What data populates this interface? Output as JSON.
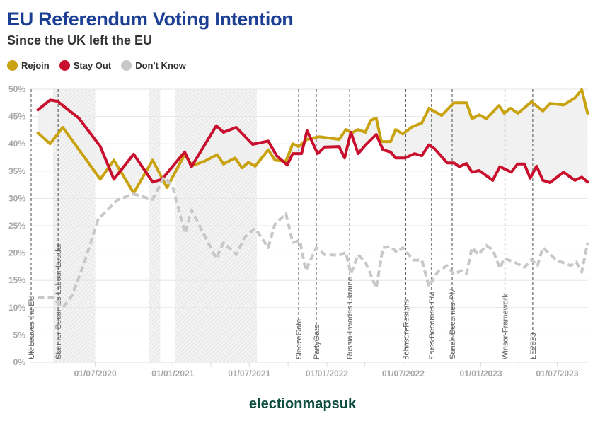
{
  "chart_data": {
    "type": "line",
    "title": "EU Referendum Voting Intention",
    "subtitle": "Since the UK left the EU",
    "xlabel": "",
    "ylabel": "",
    "xlim": [
      "2020-01-31",
      "2023-09-12"
    ],
    "ylim": [
      0,
      50
    ],
    "y_ticks": [
      "0%",
      "5%",
      "10%",
      "15%",
      "20%",
      "25%",
      "30%",
      "35%",
      "40%",
      "45%",
      "50%"
    ],
    "x_ticks": [
      {
        "date": "2020-07-01",
        "label": "01/07/2020"
      },
      {
        "date": "2021-01-01",
        "label": "01/01/2021"
      },
      {
        "date": "2021-07-01",
        "label": "01/07/2021"
      },
      {
        "date": "2022-01-01",
        "label": "01/01/2022"
      },
      {
        "date": "2022-07-01",
        "label": "01/07/2022"
      },
      {
        "date": "2023-01-01",
        "label": "01/01/2023"
      },
      {
        "date": "2023-07-01",
        "label": "01/07/2023"
      }
    ],
    "grid": true,
    "legend_position": "top-left",
    "series": [
      {
        "name": "Rejoin",
        "color": "#c9a20f",
        "style": "solid",
        "points": [
          [
            "2020-02-16",
            42
          ],
          [
            "2020-03-16",
            40
          ],
          [
            "2020-04-15",
            43
          ],
          [
            "2020-07-13",
            33.5
          ],
          [
            "2020-08-14",
            37
          ],
          [
            "2020-09-30",
            31
          ],
          [
            "2020-11-14",
            37
          ],
          [
            "2020-12-18",
            32
          ],
          [
            "2021-01-29",
            38
          ],
          [
            "2021-02-16",
            36
          ],
          [
            "2021-03-17",
            36.8
          ],
          [
            "2021-04-16",
            38
          ],
          [
            "2021-05-01",
            36.3
          ],
          [
            "2021-05-28",
            37.4
          ],
          [
            "2021-06-14",
            35.6
          ],
          [
            "2021-06-29",
            36.6
          ],
          [
            "2021-07-15",
            35.9
          ],
          [
            "2021-08-15",
            38.9
          ],
          [
            "2021-08-31",
            37
          ],
          [
            "2021-09-26",
            36.8
          ],
          [
            "2021-10-12",
            40
          ],
          [
            "2021-10-26",
            39.5
          ],
          [
            "2021-11-15",
            40.8
          ],
          [
            "2021-12-14",
            41.3
          ],
          [
            "2022-01-30",
            40.8
          ],
          [
            "2022-02-15",
            42.6
          ],
          [
            "2022-03-01",
            42
          ],
          [
            "2022-03-16",
            42.6
          ],
          [
            "2022-04-02",
            42.1
          ],
          [
            "2022-04-15",
            44.3
          ],
          [
            "2022-04-28",
            44.7
          ],
          [
            "2022-05-10",
            40.4
          ],
          [
            "2022-06-01",
            40.4
          ],
          [
            "2022-06-13",
            42.6
          ],
          [
            "2022-06-30",
            41.8
          ],
          [
            "2022-07-22",
            43.1
          ],
          [
            "2022-08-14",
            43.8
          ],
          [
            "2022-08-31",
            46.5
          ],
          [
            "2022-09-30",
            45.2
          ],
          [
            "2022-10-29",
            47.5
          ],
          [
            "2022-11-28",
            47.5
          ],
          [
            "2022-12-11",
            44.6
          ],
          [
            "2022-12-28",
            45.3
          ],
          [
            "2023-01-14",
            44.6
          ],
          [
            "2023-02-13",
            47
          ],
          [
            "2023-02-25",
            45.6
          ],
          [
            "2023-03-12",
            46.5
          ],
          [
            "2023-03-30",
            45.6
          ],
          [
            "2023-05-01",
            47.7
          ],
          [
            "2023-05-28",
            46
          ],
          [
            "2023-06-14",
            47.4
          ],
          [
            "2023-07-16",
            47.1
          ],
          [
            "2023-08-12",
            48.4
          ],
          [
            "2023-08-28",
            49.9
          ],
          [
            "2023-09-11",
            45.6
          ]
        ]
      },
      {
        "name": "Stay Out",
        "color": "#c8102e",
        "style": "solid",
        "points": [
          [
            "2020-02-16",
            46.2
          ],
          [
            "2020-03-16",
            48
          ],
          [
            "2020-04-02",
            47.8
          ],
          [
            "2020-05-23",
            44.7
          ],
          [
            "2020-07-13",
            39.5
          ],
          [
            "2020-08-14",
            33.5
          ],
          [
            "2020-09-30",
            38.1
          ],
          [
            "2020-11-14",
            33
          ],
          [
            "2020-12-06",
            33.5
          ],
          [
            "2021-01-29",
            38.5
          ],
          [
            "2021-02-14",
            35.8
          ],
          [
            "2021-04-14",
            43.3
          ],
          [
            "2021-05-01",
            42.1
          ],
          [
            "2021-05-31",
            43
          ],
          [
            "2021-07-09",
            39.9
          ],
          [
            "2021-08-15",
            40.5
          ],
          [
            "2021-09-04",
            37.8
          ],
          [
            "2021-09-29",
            36.1
          ],
          [
            "2021-10-12",
            38.2
          ],
          [
            "2021-11-02",
            38.2
          ],
          [
            "2021-11-15",
            42.4
          ],
          [
            "2021-12-10",
            38.2
          ],
          [
            "2021-12-27",
            39.4
          ],
          [
            "2022-01-30",
            39.5
          ],
          [
            "2022-02-12",
            37.4
          ],
          [
            "2022-02-27",
            42.1
          ],
          [
            "2022-03-16",
            38.2
          ],
          [
            "2022-04-03",
            39.8
          ],
          [
            "2022-04-28",
            41.7
          ],
          [
            "2022-05-14",
            38.9
          ],
          [
            "2022-06-01",
            38.5
          ],
          [
            "2022-06-13",
            37.4
          ],
          [
            "2022-07-05",
            37.4
          ],
          [
            "2022-07-28",
            38.2
          ],
          [
            "2022-08-14",
            37.8
          ],
          [
            "2022-08-31",
            39.8
          ],
          [
            "2022-09-13",
            39.1
          ],
          [
            "2022-10-13",
            36.5
          ],
          [
            "2022-10-29",
            36.5
          ],
          [
            "2022-11-11",
            35.8
          ],
          [
            "2022-11-28",
            36.4
          ],
          [
            "2022-12-11",
            34.8
          ],
          [
            "2022-12-28",
            35.1
          ],
          [
            "2023-01-29",
            33.3
          ],
          [
            "2023-02-15",
            35.8
          ],
          [
            "2023-03-14",
            34.8
          ],
          [
            "2023-03-29",
            36.3
          ],
          [
            "2023-04-14",
            36.3
          ],
          [
            "2023-04-28",
            33.7
          ],
          [
            "2023-05-13",
            35.9
          ],
          [
            "2023-05-28",
            33.3
          ],
          [
            "2023-06-14",
            32.9
          ],
          [
            "2023-07-16",
            34.8
          ],
          [
            "2023-08-12",
            33.3
          ],
          [
            "2023-08-28",
            33.9
          ],
          [
            "2023-09-11",
            33
          ]
        ]
      },
      {
        "name": "Don't Know",
        "color": "#c8c8c8",
        "style": "dashed",
        "points": [
          [
            "2020-02-16",
            11.9
          ],
          [
            "2020-03-21",
            11.9
          ],
          [
            "2020-04-15",
            10
          ],
          [
            "2020-05-07",
            12.2
          ],
          [
            "2020-06-04",
            18
          ],
          [
            "2020-07-08",
            26.2
          ],
          [
            "2020-08-22",
            29.7
          ],
          [
            "2020-09-30",
            30.8
          ],
          [
            "2020-11-14",
            29.8
          ],
          [
            "2020-12-11",
            33.9
          ],
          [
            "2020-12-31",
            32.3
          ],
          [
            "2021-01-30",
            23.6
          ],
          [
            "2021-02-14",
            27.9
          ],
          [
            "2021-04-14",
            19
          ],
          [
            "2021-05-01",
            21.9
          ],
          [
            "2021-05-31",
            19.7
          ],
          [
            "2021-06-20",
            22.9
          ],
          [
            "2021-07-15",
            24.5
          ],
          [
            "2021-08-15",
            21
          ],
          [
            "2021-08-31",
            25.3
          ],
          [
            "2021-09-26",
            27.2
          ],
          [
            "2021-10-12",
            21.9
          ],
          [
            "2021-10-29",
            22.3
          ],
          [
            "2021-11-12",
            16.8
          ],
          [
            "2021-12-07",
            21
          ],
          [
            "2021-12-27",
            19.7
          ],
          [
            "2022-01-30",
            19.6
          ],
          [
            "2022-02-15",
            20.1
          ],
          [
            "2022-02-27",
            16.2
          ],
          [
            "2022-03-16",
            19.7
          ],
          [
            "2022-04-02",
            18.4
          ],
          [
            "2022-04-28",
            13.6
          ],
          [
            "2022-05-14",
            21
          ],
          [
            "2022-06-01",
            21.2
          ],
          [
            "2022-06-16",
            20.1
          ],
          [
            "2022-06-30",
            21
          ],
          [
            "2022-07-25",
            18.7
          ],
          [
            "2022-08-14",
            18.7
          ],
          [
            "2022-08-31",
            13.9
          ],
          [
            "2022-09-22",
            16.7
          ],
          [
            "2022-10-13",
            17.7
          ],
          [
            "2022-10-29",
            16.1
          ],
          [
            "2022-11-16",
            16.8
          ],
          [
            "2022-11-28",
            16.2
          ],
          [
            "2022-12-11",
            21
          ],
          [
            "2022-12-26",
            19.7
          ],
          [
            "2023-01-14",
            21.4
          ],
          [
            "2023-01-29",
            20.6
          ],
          [
            "2023-02-15",
            17.2
          ],
          [
            "2023-02-25",
            19
          ],
          [
            "2023-03-20",
            18.4
          ],
          [
            "2023-04-14",
            17.4
          ],
          [
            "2023-05-01",
            18.8
          ],
          [
            "2023-05-15",
            17.7
          ],
          [
            "2023-05-28",
            21
          ],
          [
            "2023-06-29",
            18.7
          ],
          [
            "2023-08-02",
            17.7
          ],
          [
            "2023-08-15",
            18.4
          ],
          [
            "2023-08-28",
            16.5
          ],
          [
            "2023-09-11",
            21.9
          ]
        ]
      }
    ],
    "gap_fill_color": "#efefef",
    "shaded_periods": [
      {
        "start": "2020-03-23",
        "end": "2020-07-01"
      },
      {
        "start": "2020-11-05",
        "end": "2020-12-02"
      },
      {
        "start": "2021-01-06",
        "end": "2021-07-19"
      }
    ],
    "events": [
      {
        "date": "2020-01-31",
        "label": "UK Leaves the EU"
      },
      {
        "date": "2020-04-04",
        "label": "Starmer-Becomes-Labour-Leader"
      },
      {
        "date": "2021-10-26",
        "label": "SleazeGate"
      },
      {
        "date": "2021-12-07",
        "label": "PartyGate"
      },
      {
        "date": "2022-02-24",
        "label": "Russia-Invades Ukraine"
      },
      {
        "date": "2022-07-07",
        "label": "Johnson-Resigns"
      },
      {
        "date": "2022-09-06",
        "label": "Truss Becomes PM"
      },
      {
        "date": "2022-10-25",
        "label": "Sunak-Becomes-PM"
      },
      {
        "date": "2023-02-27",
        "label": "Winsor-Framework"
      },
      {
        "date": "2023-05-04",
        "label": "LE2023"
      }
    ]
  },
  "footer": "electionmapsuk"
}
